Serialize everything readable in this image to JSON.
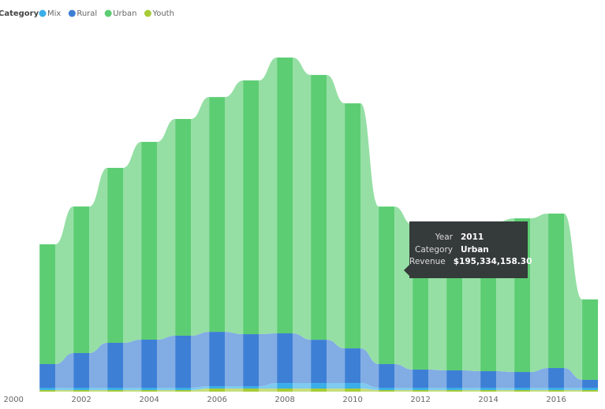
{
  "chart_data": {
    "type": "ribbon",
    "legend_title": "Category",
    "x": [
      2001,
      2002,
      2003,
      2004,
      2005,
      2006,
      2007,
      2008,
      2009,
      2010,
      2011,
      2012,
      2013,
      2014,
      2015,
      2016,
      2017
    ],
    "xlim": [
      1999.6,
      2017.44
    ],
    "xticks": [
      2000,
      2002,
      2004,
      2006,
      2008,
      2010,
      2012,
      2014,
      2016
    ],
    "series": [
      {
        "name": "Mix",
        "color": "#3aaee8",
        "values": [
          2900000,
          2900000,
          2900000,
          2900000,
          2900000,
          2900000,
          2900000,
          6800000,
          6800000,
          6800000,
          2900000,
          2900000,
          2900000,
          2900000,
          2900000,
          2900000,
          2900000
        ]
      },
      {
        "name": "Rural",
        "color": "#3e7fd6",
        "values": [
          29300000,
          43000000,
          55700000,
          59600000,
          64500000,
          67400000,
          64500000,
          61600000,
          53700000,
          43000000,
          29300000,
          22500000,
          21500000,
          20500000,
          19500000,
          24400000,
          9800000
        ]
      },
      {
        "name": "Urban",
        "color": "#5ccd73",
        "values": [
          148500000,
          181700000,
          216900000,
          245200000,
          268700000,
          291100000,
          314600000,
          342000000,
          328300000,
          303800000,
          195334158.3,
          179800000,
          180700000,
          184700000,
          190500000,
          191500000,
          99700000
        ]
      },
      {
        "name": "Youth",
        "color": "#a7cc38",
        "values": [
          2000000,
          2000000,
          2000000,
          2000000,
          2000000,
          3900000,
          3900000,
          3900000,
          3900000,
          3900000,
          2000000,
          2000000,
          2000000,
          2000000,
          2000000,
          2000000,
          2000000
        ]
      }
    ],
    "tooltip": [
      {
        "label": "Year",
        "value": "2011"
      },
      {
        "label": "Category",
        "value": "Urban"
      },
      {
        "label": "Revenue",
        "value": "$195,334,158.30"
      }
    ]
  }
}
